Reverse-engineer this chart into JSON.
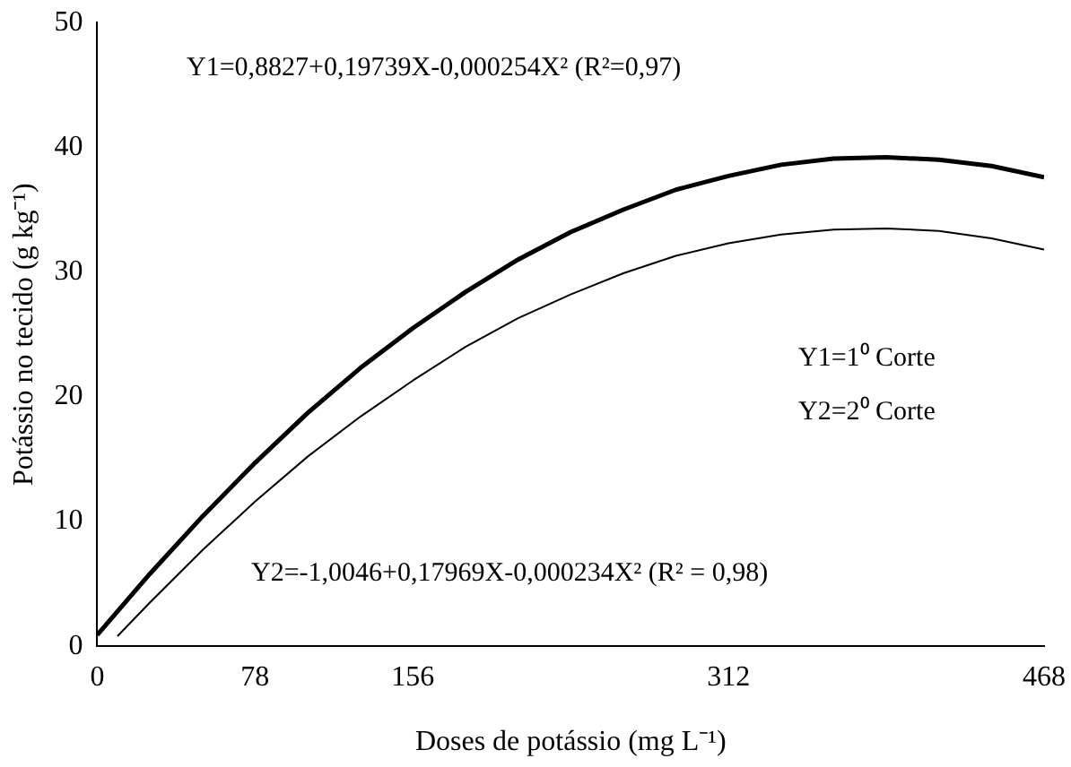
{
  "chart_data": {
    "type": "line",
    "xlabel": "Doses de potássio (mg L⁻¹)",
    "ylabel": "Potássio no tecido (g kg⁻¹)",
    "xlim": [
      0,
      468
    ],
    "xticks": [
      0,
      78,
      156,
      312,
      468
    ],
    "ylim": [
      0,
      50
    ],
    "yticks": [
      0,
      10,
      20,
      30,
      40,
      50
    ],
    "grid": false,
    "legend": false,
    "marker": "none",
    "line_style": "solid",
    "series": [
      {
        "color": "#000000",
        "x": [
          0,
          26,
          52,
          78,
          104,
          130,
          156,
          182,
          208,
          234,
          260,
          286,
          312,
          338,
          364,
          390,
          416,
          442,
          468
        ],
        "values": [
          0.9,
          5.8,
          10.4,
          14.7,
          18.7,
          22.3,
          25.5,
          28.4,
          31,
          33.2,
          35,
          36.6,
          37.7,
          38.6,
          39.1,
          39.2,
          39,
          38.5,
          37.6
        ]
      },
      {
        "color": "#000000",
        "x": [
          10,
          26,
          52,
          78,
          104,
          130,
          156,
          182,
          208,
          234,
          260,
          286,
          312,
          338,
          364,
          390,
          416,
          442,
          468
        ],
        "values": [
          0.8,
          3.5,
          7.7,
          11.6,
          15.2,
          18.4,
          21.3,
          24,
          26.3,
          28.2,
          29.9,
          31.3,
          32.3,
          33,
          33.4,
          33.5,
          33.3,
          32.7,
          31.8
        ]
      }
    ],
    "annotations": [
      "Y1=0,8827+0,19739X-0,000254X²   (R²=0,97)",
      "Y1=1⁰ Corte",
      "Y2=2⁰ Corte",
      "Y2=-1,0046+0,17969X-0,000234X²   (R² = 0,98)"
    ]
  }
}
